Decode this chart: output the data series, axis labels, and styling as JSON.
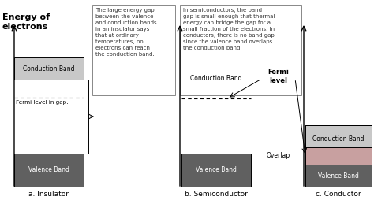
{
  "title": "Energy of\nelectrons",
  "conduction_color": "#c8c8c8",
  "valence_color": "#606060",
  "overlap_color": "#c8a0a0",
  "box_text1": "The large energy gap\nbetween the valence\nand conduction bands\nin an insulator says\nthat at ordinary\ntemperatures, no\nelectrons can reach\nthe conduction band.",
  "box_text2": "In semiconductors, the band\ngap is small enough that thermal\nenergy can bridge the gap for a\nsmall fraction of the electrons. In\nconductors, there is no band gap\nsince the valence band overlaps\nthe conduction band.",
  "label_a": "a. Insulator",
  "label_b": "b. Semiconductor",
  "label_c": "c. Conductor",
  "fermi_gap_text": "Fermi level in gap.",
  "fermi_level_text": "Fermi\nlevel",
  "overlap_text": "Overlap",
  "cond_band_text": "Conduction Band",
  "val_band_text": "Valence Band"
}
